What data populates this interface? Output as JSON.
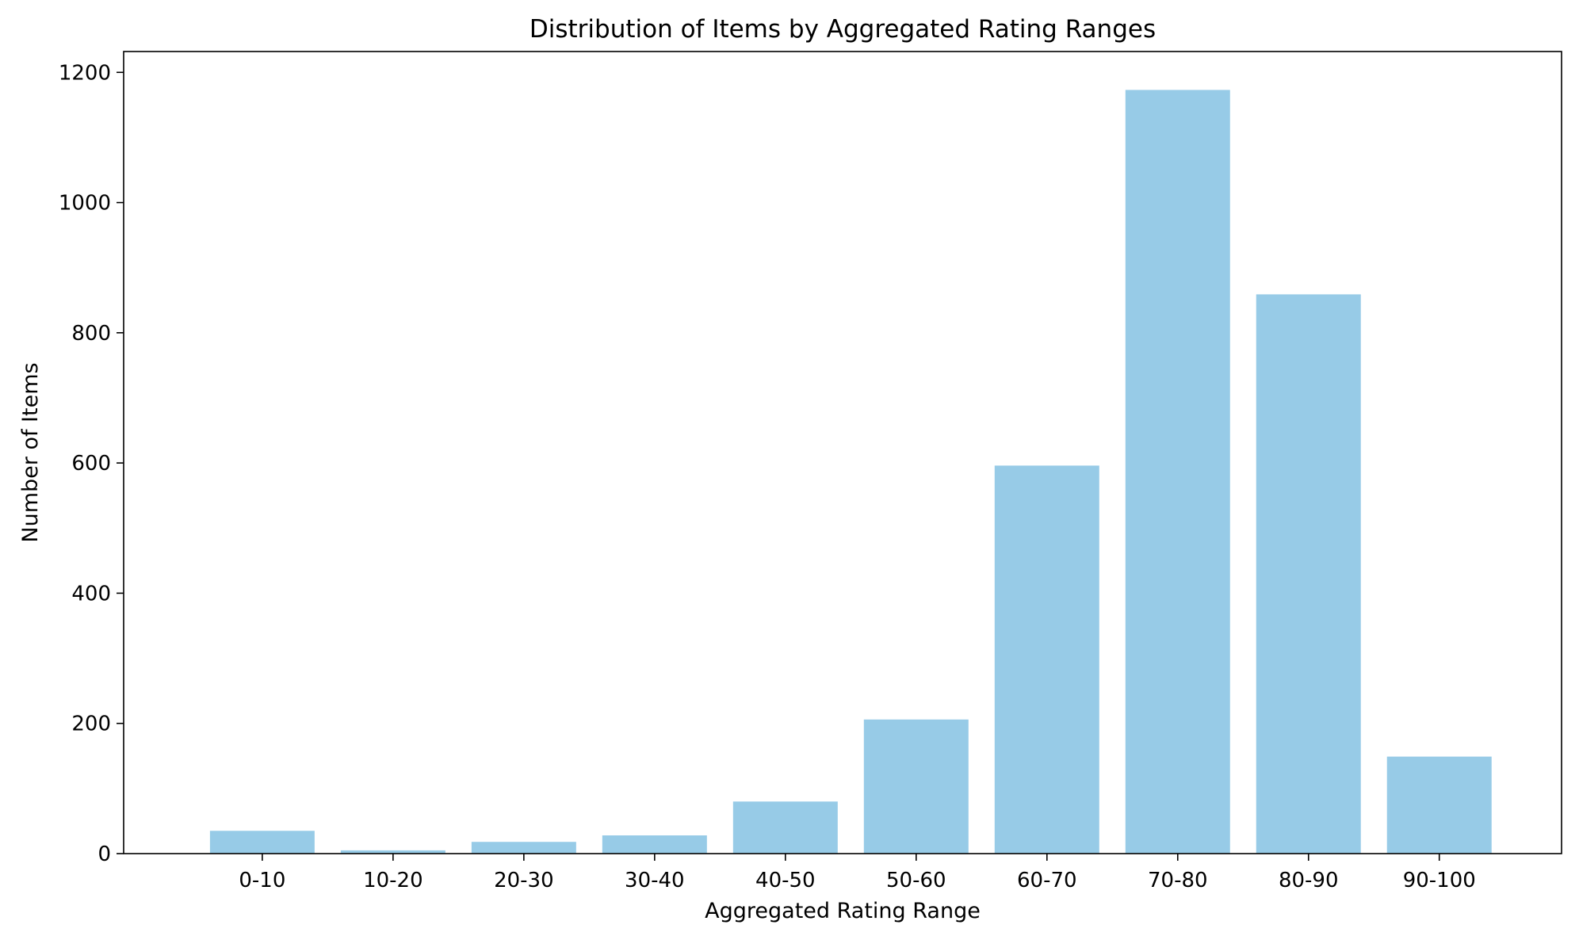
{
  "chart_data": {
    "type": "bar",
    "title": "Distribution of Items by Aggregated Rating Ranges",
    "xlabel": "Aggregated Rating Range",
    "ylabel": "Number of Items",
    "categories": [
      "0-10",
      "10-20",
      "20-30",
      "30-40",
      "40-50",
      "50-60",
      "60-70",
      "70-80",
      "80-90",
      "90-100"
    ],
    "values": [
      35,
      5,
      18,
      28,
      80,
      206,
      596,
      1173,
      859,
      149
    ],
    "ylim": [
      0,
      1232
    ],
    "yticks": [
      0,
      200,
      400,
      600,
      800,
      1000,
      1200
    ],
    "bar_color": "#97cbe7",
    "grid": false,
    "legend": "none"
  }
}
